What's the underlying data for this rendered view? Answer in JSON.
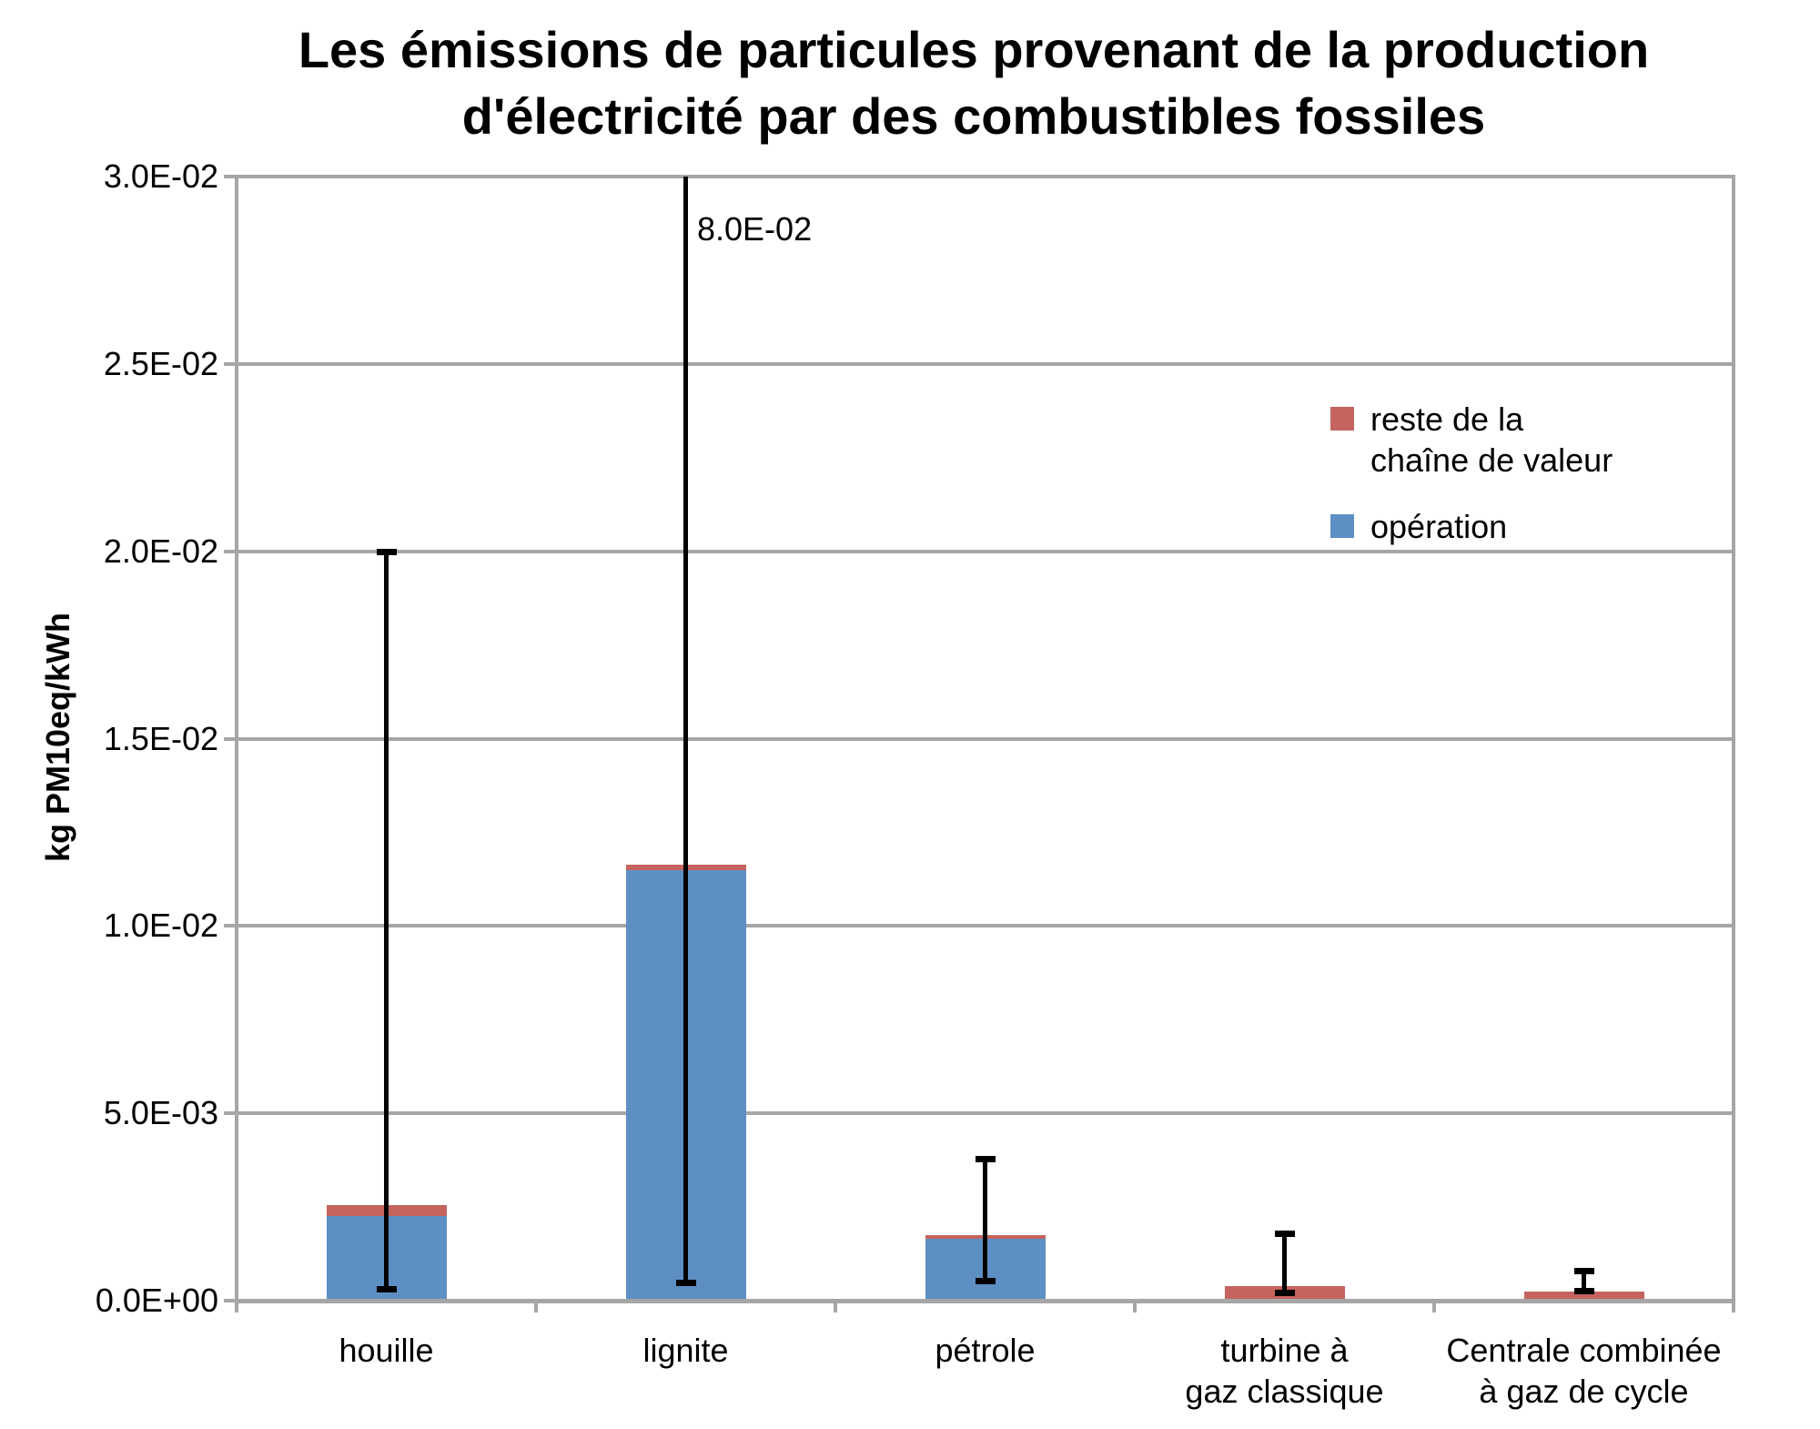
{
  "title": {
    "line1": "Les émissions de particules provenant de la production",
    "line2": "d'électricité par des combustibles fossiles"
  },
  "y_axis": {
    "title": "kg PM10eq/kWh",
    "ticks": [
      {
        "label": "0.0E+00",
        "value": 0
      },
      {
        "label": "5.0E-03",
        "value": 0.005
      },
      {
        "label": "1.0E-02",
        "value": 0.01
      },
      {
        "label": "1.5E-02",
        "value": 0.015
      },
      {
        "label": "2.0E-02",
        "value": 0.02
      },
      {
        "label": "2.5E-02",
        "value": 0.025
      },
      {
        "label": "3.0E-02",
        "value": 0.03
      }
    ]
  },
  "legend": {
    "items": [
      {
        "label": "reste de la chaîne de valeur",
        "color": "#C5645E"
      },
      {
        "label": "opération",
        "color": "#5E8FC4"
      }
    ]
  },
  "annotation": {
    "text": "8.0E-02"
  },
  "colors": {
    "gridline": "#A6A6A6",
    "axis": "#A6A6A6",
    "error_bar": "#000000",
    "background": "#FFFFFF"
  },
  "chart_data": {
    "type": "bar",
    "stacked": true,
    "title": "Les émissions de particules provenant de la production d'électricité par des combustibles fossiles",
    "ylabel": "kg PM10eq/kWh",
    "ylim": [
      0,
      0.03
    ],
    "ytick_step": 0.005,
    "grid": true,
    "legend_position": "inside-right",
    "categories": [
      "houille",
      "lignite",
      "pétrole",
      "turbine à gaz classique",
      "Centrale combinée à gaz de cycle"
    ],
    "category_label_lines": [
      [
        "houille"
      ],
      [
        "lignite"
      ],
      [
        "pétrole"
      ],
      [
        "turbine à",
        "gaz classique"
      ],
      [
        "Centrale combinée",
        "à gaz de cycle"
      ]
    ],
    "series": [
      {
        "name": "opération",
        "color": "#5E8FC4",
        "values": [
          0.00225,
          0.0115,
          0.00165,
          5e-05,
          0
        ]
      },
      {
        "name": "reste de la chaîne de valeur",
        "color": "#C5645E",
        "values": [
          0.0003,
          0.00015,
          0.0001,
          0.00035,
          0.00025
        ]
      }
    ],
    "totals": [
      0.00255,
      0.01165,
      0.00175,
      0.0004,
      0.00025
    ],
    "error_bars": {
      "low": [
        0.0003,
        0.00045,
        0.0005,
        0.0002,
        0.00024
      ],
      "high": [
        0.02,
        0.08,
        0.0038,
        0.0018,
        0.0008
      ]
    },
    "clipped_annotation": {
      "category": "lignite",
      "value_label": "8.0E-02"
    }
  }
}
